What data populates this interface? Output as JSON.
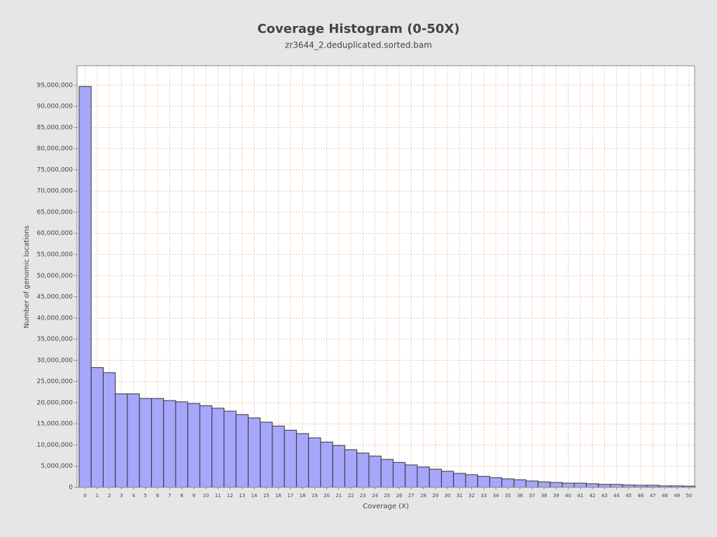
{
  "chart_data": {
    "type": "bar",
    "title": "Coverage Histogram (0-50X)",
    "subtitle": "zr3644_2.deduplicated.sorted.bam",
    "x_label": "Coverage (X)",
    "y_label": "Number of genomic locations",
    "x": [
      0,
      1,
      2,
      3,
      4,
      5,
      6,
      7,
      8,
      9,
      10,
      11,
      12,
      13,
      14,
      15,
      16,
      17,
      18,
      19,
      20,
      21,
      22,
      23,
      24,
      25,
      26,
      27,
      28,
      29,
      30,
      31,
      32,
      33,
      34,
      35,
      36,
      37,
      38,
      39,
      40,
      41,
      42,
      43,
      44,
      45,
      46,
      47,
      48,
      49,
      50
    ],
    "values": [
      94700000,
      28300000,
      27100000,
      22100000,
      22100000,
      21000000,
      21000000,
      20500000,
      20200000,
      19800000,
      19300000,
      18700000,
      18000000,
      17200000,
      16400000,
      15400000,
      14500000,
      13500000,
      12700000,
      11700000,
      10700000,
      9900000,
      8900000,
      8100000,
      7400000,
      6600000,
      5900000,
      5300000,
      4800000,
      4300000,
      3800000,
      3300000,
      3000000,
      2600000,
      2300000,
      2000000,
      1800000,
      1500000,
      1300000,
      1150000,
      1000000,
      1000000,
      850000,
      700000,
      700000,
      550000,
      500000,
      500000,
      350000,
      350000,
      300000
    ],
    "color": "#a6a6fa",
    "edge_color": "#333333",
    "xlim": [
      -0.67,
      50.46
    ],
    "xticks": [
      0,
      1,
      2,
      3,
      4,
      5,
      6,
      7,
      8,
      9,
      10,
      11,
      12,
      13,
      14,
      15,
      16,
      17,
      18,
      19,
      20,
      21,
      22,
      23,
      24,
      25,
      26,
      27,
      28,
      29,
      30,
      31,
      32,
      33,
      34,
      35,
      36,
      37,
      38,
      39,
      40,
      41,
      42,
      43,
      44,
      45,
      46,
      47,
      48,
      49,
      50
    ],
    "ylim": [
      0,
      99600000
    ],
    "yticks": [
      0,
      {
        "value": 5000000,
        "label": "5,000,000"
      },
      {
        "value": 10000000,
        "label": "10,000,000"
      },
      {
        "value": 15000000,
        "label": "15,000,000"
      },
      {
        "value": 20000000,
        "label": "20,000,000"
      },
      {
        "value": 25000000,
        "label": "25,000,000"
      },
      {
        "value": 30000000,
        "label": "30,000,000"
      },
      {
        "value": 35000000,
        "label": "35,000,000"
      },
      {
        "value": 40000000,
        "label": "40,000,000"
      },
      {
        "value": 45000000,
        "label": "45,000,000"
      },
      {
        "value": 50000000,
        "label": "50,000,000"
      },
      {
        "value": 55000000,
        "label": "55,000,000"
      },
      {
        "value": 60000000,
        "label": "60,000,000"
      },
      {
        "value": 65000000,
        "label": "65,000,000"
      },
      {
        "value": 70000000,
        "label": "70,000,000"
      },
      {
        "value": 75000000,
        "label": "75,000,000"
      },
      {
        "value": 80000000,
        "label": "80,000,000"
      },
      {
        "value": 85000000,
        "label": "85,000,000"
      },
      {
        "value": 90000000,
        "label": "90,000,000"
      },
      {
        "value": 95000000,
        "label": "95,000,000"
      }
    ],
    "grid": true
  }
}
